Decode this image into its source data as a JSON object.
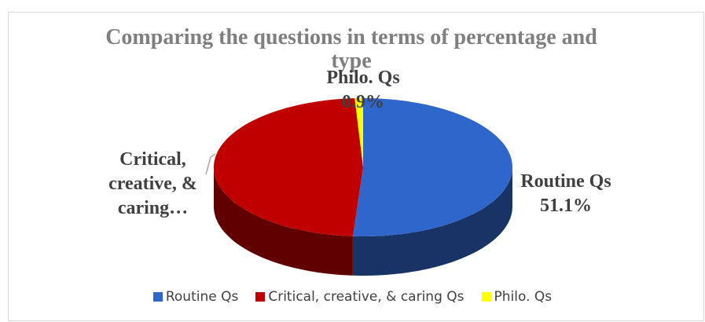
{
  "chart_data": {
    "type": "pie3d",
    "title": "Comparing the questions in terms of percentage and type",
    "categories": [
      "Routine Qs",
      "Critical, creative, & caring Qs",
      "Philo. Qs"
    ],
    "values": [
      51.1,
      48.0,
      0.9
    ],
    "value_labels": [
      "51.1%",
      null,
      "0.9%"
    ],
    "point_labels": [
      "Routine Qs",
      "Critical, creative, & caring…",
      "Philo. Qs"
    ],
    "colors": [
      "#2f66cc",
      "#c00000",
      "#ffff00"
    ],
    "legend": "bottom"
  }
}
